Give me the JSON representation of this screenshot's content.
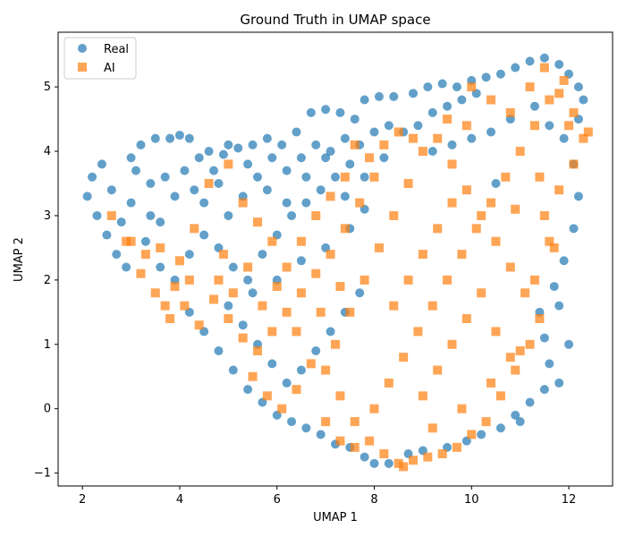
{
  "chart_data": {
    "type": "scatter",
    "title": "Ground Truth in UMAP space",
    "xlabel": "UMAP 1",
    "ylabel": "UMAP 2",
    "xlim": [
      1.5,
      12.9
    ],
    "ylim": [
      -1.2,
      5.85
    ],
    "xticks": [
      2,
      4,
      6,
      8,
      10,
      12
    ],
    "yticks": [
      -1,
      0,
      1,
      2,
      3,
      4,
      5
    ],
    "grid": false,
    "legend_position": "upper-left",
    "series": [
      {
        "name": "Real",
        "marker": "circle",
        "color": "#1f77b4",
        "alpha": 0.7,
        "points": [
          [
            2.1,
            3.3
          ],
          [
            2.2,
            3.6
          ],
          [
            2.4,
            3.8
          ],
          [
            2.3,
            3.0
          ],
          [
            2.5,
            2.7
          ],
          [
            2.7,
            2.4
          ],
          [
            2.9,
            2.2
          ],
          [
            3.0,
            3.9
          ],
          [
            3.2,
            4.1
          ],
          [
            3.5,
            4.2
          ],
          [
            3.8,
            4.2
          ],
          [
            4.0,
            4.25
          ],
          [
            4.2,
            4.2
          ],
          [
            3.4,
            3.5
          ],
          [
            3.0,
            3.2
          ],
          [
            2.8,
            2.9
          ],
          [
            3.3,
            2.6
          ],
          [
            3.6,
            2.9
          ],
          [
            3.9,
            3.3
          ],
          [
            4.1,
            3.7
          ],
          [
            4.4,
            3.9
          ],
          [
            4.6,
            4.0
          ],
          [
            4.9,
            3.95
          ],
          [
            5.2,
            4.05
          ],
          [
            5.5,
            4.1
          ],
          [
            5.8,
            4.2
          ],
          [
            6.1,
            4.1
          ],
          [
            6.4,
            4.3
          ],
          [
            6.7,
            4.6
          ],
          [
            7.0,
            4.65
          ],
          [
            7.3,
            4.6
          ],
          [
            7.6,
            4.5
          ],
          [
            7.8,
            4.8
          ],
          [
            8.1,
            4.85
          ],
          [
            8.4,
            4.85
          ],
          [
            8.8,
            4.9
          ],
          [
            9.1,
            5.0
          ],
          [
            9.4,
            5.05
          ],
          [
            9.7,
            5.0
          ],
          [
            10.0,
            5.1
          ],
          [
            10.3,
            5.15
          ],
          [
            10.6,
            5.2
          ],
          [
            10.9,
            5.3
          ],
          [
            11.2,
            5.4
          ],
          [
            11.5,
            5.45
          ],
          [
            11.8,
            5.35
          ],
          [
            12.0,
            5.2
          ],
          [
            12.2,
            5.0
          ],
          [
            12.3,
            4.8
          ],
          [
            12.2,
            4.5
          ],
          [
            4.5,
            3.2
          ],
          [
            4.8,
            3.5
          ],
          [
            5.0,
            3.0
          ],
          [
            5.3,
            3.3
          ],
          [
            5.6,
            3.6
          ],
          [
            5.9,
            3.9
          ],
          [
            6.2,
            3.7
          ],
          [
            6.5,
            3.9
          ],
          [
            6.8,
            4.1
          ],
          [
            7.1,
            4.0
          ],
          [
            7.4,
            4.2
          ],
          [
            7.7,
            4.1
          ],
          [
            8.0,
            4.3
          ],
          [
            8.3,
            4.4
          ],
          [
            8.6,
            4.3
          ],
          [
            8.9,
            4.4
          ],
          [
            9.2,
            4.6
          ],
          [
            9.5,
            4.7
          ],
          [
            9.8,
            4.8
          ],
          [
            10.1,
            4.9
          ],
          [
            3.6,
            2.2
          ],
          [
            3.9,
            2.0
          ],
          [
            4.2,
            2.4
          ],
          [
            4.5,
            2.7
          ],
          [
            4.8,
            2.5
          ],
          [
            5.1,
            2.2
          ],
          [
            5.4,
            2.0
          ],
          [
            5.7,
            2.4
          ],
          [
            6.0,
            2.7
          ],
          [
            6.3,
            3.0
          ],
          [
            6.6,
            3.2
          ],
          [
            6.9,
            3.4
          ],
          [
            7.2,
            3.6
          ],
          [
            7.5,
            3.8
          ],
          [
            7.8,
            3.6
          ],
          [
            4.2,
            1.5
          ],
          [
            4.5,
            1.2
          ],
          [
            4.8,
            0.9
          ],
          [
            5.1,
            0.6
          ],
          [
            5.4,
            0.3
          ],
          [
            5.7,
            0.1
          ],
          [
            6.0,
            -0.1
          ],
          [
            6.3,
            -0.2
          ],
          [
            6.6,
            -0.3
          ],
          [
            6.9,
            -0.4
          ],
          [
            7.2,
            -0.55
          ],
          [
            7.5,
            -0.6
          ],
          [
            7.8,
            -0.75
          ],
          [
            8.0,
            -0.85
          ],
          [
            8.3,
            -0.85
          ],
          [
            5.0,
            1.6
          ],
          [
            5.3,
            1.3
          ],
          [
            5.6,
            1.0
          ],
          [
            5.9,
            0.7
          ],
          [
            6.2,
            0.4
          ],
          [
            6.5,
            0.6
          ],
          [
            6.8,
            0.9
          ],
          [
            7.1,
            1.2
          ],
          [
            7.4,
            1.5
          ],
          [
            7.7,
            1.8
          ],
          [
            5.5,
            1.8
          ],
          [
            6.0,
            2.0
          ],
          [
            6.5,
            2.3
          ],
          [
            7.0,
            2.5
          ],
          [
            7.5,
            2.8
          ],
          [
            10.6,
            -0.3
          ],
          [
            10.9,
            -0.1
          ],
          [
            11.2,
            0.1
          ],
          [
            11.5,
            0.3
          ],
          [
            11.6,
            0.7
          ],
          [
            11.5,
            1.1
          ],
          [
            11.4,
            1.5
          ],
          [
            11.7,
            1.9
          ],
          [
            11.9,
            2.3
          ],
          [
            12.1,
            2.8
          ],
          [
            12.2,
            3.3
          ],
          [
            12.1,
            3.8
          ],
          [
            11.9,
            4.2
          ],
          [
            11.6,
            4.4
          ],
          [
            11.3,
            4.7
          ],
          [
            10.8,
            4.5
          ],
          [
            10.4,
            4.3
          ],
          [
            10.0,
            4.2
          ],
          [
            9.6,
            4.1
          ],
          [
            9.2,
            4.0
          ],
          [
            2.6,
            3.4
          ],
          [
            3.1,
            3.7
          ],
          [
            3.4,
            3.0
          ],
          [
            3.7,
            3.6
          ],
          [
            4.3,
            3.4
          ],
          [
            4.7,
            3.7
          ],
          [
            5.0,
            4.1
          ],
          [
            5.4,
            3.8
          ],
          [
            5.8,
            3.4
          ],
          [
            6.2,
            3.2
          ],
          [
            6.6,
            3.6
          ],
          [
            7.0,
            3.9
          ],
          [
            7.4,
            3.3
          ],
          [
            7.8,
            3.1
          ],
          [
            8.2,
            3.9
          ],
          [
            9.9,
            -0.5
          ],
          [
            10.2,
            -0.4
          ],
          [
            9.5,
            -0.6
          ],
          [
            8.7,
            -0.7
          ],
          [
            9.0,
            -0.65
          ],
          [
            11.0,
            -0.2
          ],
          [
            11.8,
            0.4
          ],
          [
            12.0,
            1.0
          ],
          [
            11.8,
            1.6
          ],
          [
            10.5,
            3.5
          ]
        ]
      },
      {
        "name": "AI",
        "marker": "square",
        "color": "#ff7f0e",
        "alpha": 0.7,
        "points": [
          [
            7.5,
            1.5
          ],
          [
            7.8,
            2.0
          ],
          [
            8.1,
            2.5
          ],
          [
            8.4,
            3.0
          ],
          [
            8.7,
            3.5
          ],
          [
            9.0,
            4.0
          ],
          [
            9.3,
            4.2
          ],
          [
            9.6,
            3.8
          ],
          [
            9.9,
            3.4
          ],
          [
            10.2,
            3.0
          ],
          [
            10.5,
            2.6
          ],
          [
            10.8,
            2.2
          ],
          [
            11.1,
            1.8
          ],
          [
            11.4,
            1.4
          ],
          [
            11.2,
            1.0
          ],
          [
            10.9,
            0.6
          ],
          [
            10.6,
            0.2
          ],
          [
            10.3,
            -0.2
          ],
          [
            10.0,
            -0.4
          ],
          [
            9.7,
            -0.6
          ],
          [
            9.4,
            -0.7
          ],
          [
            9.1,
            -0.75
          ],
          [
            8.8,
            -0.8
          ],
          [
            8.5,
            -0.85
          ],
          [
            8.2,
            -0.7
          ],
          [
            7.9,
            -0.5
          ],
          [
            7.6,
            -0.2
          ],
          [
            7.3,
            0.2
          ],
          [
            7.0,
            0.6
          ],
          [
            7.2,
            1.0
          ],
          [
            8.0,
            0.0
          ],
          [
            8.3,
            0.4
          ],
          [
            8.6,
            0.8
          ],
          [
            8.9,
            1.2
          ],
          [
            9.2,
            1.6
          ],
          [
            9.5,
            2.0
          ],
          [
            9.8,
            2.4
          ],
          [
            10.1,
            2.8
          ],
          [
            10.4,
            3.2
          ],
          [
            10.7,
            3.6
          ],
          [
            11.0,
            4.0
          ],
          [
            11.3,
            4.4
          ],
          [
            11.6,
            4.8
          ],
          [
            11.9,
            5.1
          ],
          [
            12.1,
            4.6
          ],
          [
            12.3,
            4.2
          ],
          [
            12.1,
            3.8
          ],
          [
            11.8,
            3.4
          ],
          [
            11.5,
            3.0
          ],
          [
            11.7,
            2.5
          ],
          [
            9.0,
            0.2
          ],
          [
            9.3,
            0.6
          ],
          [
            9.6,
            1.0
          ],
          [
            9.9,
            1.4
          ],
          [
            10.2,
            1.8
          ],
          [
            10.5,
            1.2
          ],
          [
            10.8,
            0.8
          ],
          [
            8.4,
            1.6
          ],
          [
            8.7,
            2.0
          ],
          [
            9.0,
            2.4
          ],
          [
            9.3,
            2.8
          ],
          [
            9.6,
            3.2
          ],
          [
            8.0,
            3.6
          ],
          [
            7.7,
            3.2
          ],
          [
            7.4,
            2.8
          ],
          [
            7.1,
            2.4
          ],
          [
            6.8,
            2.1
          ],
          [
            6.5,
            1.8
          ],
          [
            6.2,
            1.5
          ],
          [
            5.9,
            1.2
          ],
          [
            5.6,
            0.9
          ],
          [
            5.3,
            1.1
          ],
          [
            5.0,
            1.4
          ],
          [
            4.7,
            1.7
          ],
          [
            4.4,
            1.3
          ],
          [
            4.1,
            1.6
          ],
          [
            3.8,
            1.4
          ],
          [
            3.5,
            1.8
          ],
          [
            3.2,
            2.1
          ],
          [
            2.9,
            2.6
          ],
          [
            2.6,
            3.0
          ],
          [
            3.3,
            2.4
          ],
          [
            3.6,
            2.5
          ],
          [
            4.0,
            2.3
          ],
          [
            4.3,
            2.8
          ],
          [
            4.6,
            3.5
          ],
          [
            5.0,
            3.8
          ],
          [
            5.3,
            3.2
          ],
          [
            5.6,
            2.9
          ],
          [
            5.9,
            2.6
          ],
          [
            6.2,
            2.2
          ],
          [
            6.5,
            2.6
          ],
          [
            6.8,
            3.0
          ],
          [
            7.1,
            3.3
          ],
          [
            7.4,
            3.6
          ],
          [
            5.5,
            0.5
          ],
          [
            5.8,
            0.2
          ],
          [
            6.1,
            0.0
          ],
          [
            6.4,
            0.3
          ],
          [
            6.7,
            0.7
          ],
          [
            7.0,
            -0.2
          ],
          [
            7.3,
            -0.5
          ],
          [
            7.6,
            -0.6
          ],
          [
            8.6,
            -0.9
          ],
          [
            9.2,
            -0.3
          ],
          [
            9.8,
            0.0
          ],
          [
            10.4,
            0.4
          ],
          [
            11.0,
            0.9
          ],
          [
            11.3,
            2.0
          ],
          [
            11.6,
            2.6
          ],
          [
            10.0,
            5.0
          ],
          [
            10.4,
            4.8
          ],
          [
            10.8,
            4.6
          ],
          [
            11.2,
            5.0
          ],
          [
            11.5,
            5.3
          ],
          [
            11.8,
            4.9
          ],
          [
            12.0,
            4.4
          ],
          [
            12.4,
            4.3
          ],
          [
            11.4,
            3.6
          ],
          [
            10.9,
            3.1
          ],
          [
            8.2,
            4.1
          ],
          [
            8.5,
            4.3
          ],
          [
            8.8,
            4.2
          ],
          [
            9.5,
            4.5
          ],
          [
            9.9,
            4.4
          ],
          [
            7.9,
            3.9
          ],
          [
            7.6,
            4.1
          ],
          [
            6.9,
            1.5
          ],
          [
            7.3,
            1.9
          ],
          [
            6.4,
            1.2
          ],
          [
            4.8,
            2.0
          ],
          [
            5.1,
            1.8
          ],
          [
            5.4,
            2.2
          ],
          [
            5.7,
            1.6
          ],
          [
            6.0,
            1.9
          ],
          [
            3.9,
            1.9
          ],
          [
            4.2,
            2.0
          ],
          [
            3.7,
            1.6
          ],
          [
            3.0,
            2.6
          ],
          [
            4.9,
            2.4
          ]
        ]
      }
    ]
  }
}
